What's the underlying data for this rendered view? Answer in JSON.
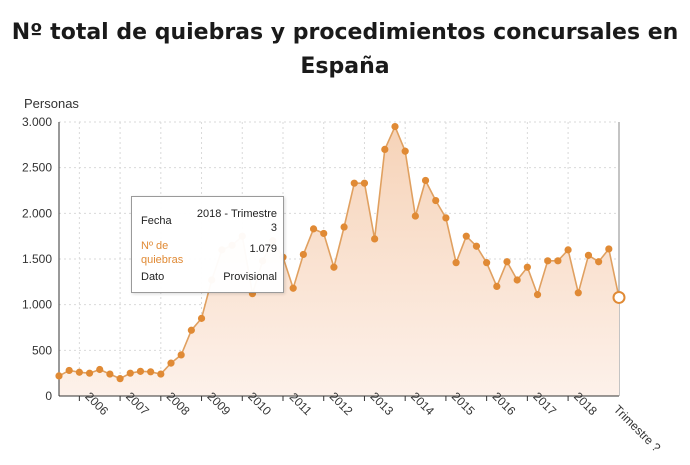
{
  "header": {
    "title_line1": "Nº total de quiebras y procedimientos concursales en",
    "title_line2": "España",
    "y_unit": "Personas"
  },
  "tooltip": {
    "row1_key": "Fecha",
    "row1_value": "2018 - Trimestre 3",
    "row2_key": "Nº de quiebras",
    "row2_value": "1.079",
    "row3_key": "Dato",
    "row3_value": "Provisional"
  },
  "colors": {
    "line": "#e0a060",
    "marker": "#e08a35",
    "area_top": "#f6d3b8",
    "area_bottom": "#fdf1ea",
    "grid": "#d9d9d9",
    "axis": "#333333"
  },
  "chart_data": {
    "type": "area",
    "title": "Nº total de quiebras y procedimientos concursales en España",
    "ylabel": "Personas",
    "ylim": [
      0,
      3000
    ],
    "yticks": [
      0,
      500,
      1000,
      1500,
      2000,
      2500,
      3000
    ],
    "ytick_labels": [
      "0",
      "500",
      "1.000",
      "1.500",
      "2.000",
      "2.500",
      "3.000"
    ],
    "xtick_labels": [
      "2006",
      "2007",
      "2008",
      "2009",
      "2010",
      "2011",
      "2012",
      "2013",
      "2014",
      "2015",
      "2016",
      "2017",
      "2018",
      "Trimestre ?"
    ],
    "grid": true,
    "x_start": "2005 - Trimestre 3",
    "x_end": "2018 - Trimestre 3",
    "frequency": "quarterly",
    "series": [
      {
        "name": "Nº de quiebras",
        "values": [
          220,
          280,
          260,
          250,
          290,
          240,
          190,
          250,
          270,
          265,
          240,
          360,
          450,
          720,
          850,
          1270,
          1600,
          1650,
          1750,
          1120,
          1480,
          1700,
          1520,
          1180,
          1550,
          1830,
          1780,
          1410,
          1850,
          2330,
          2330,
          1720,
          2700,
          2950,
          2680,
          1970,
          2360,
          2140,
          1950,
          1460,
          1750,
          1640,
          1460,
          1200,
          1470,
          1270,
          1410,
          1110,
          1480,
          1480,
          1600,
          1130,
          1540,
          1470,
          1610,
          1079
        ]
      }
    ]
  }
}
